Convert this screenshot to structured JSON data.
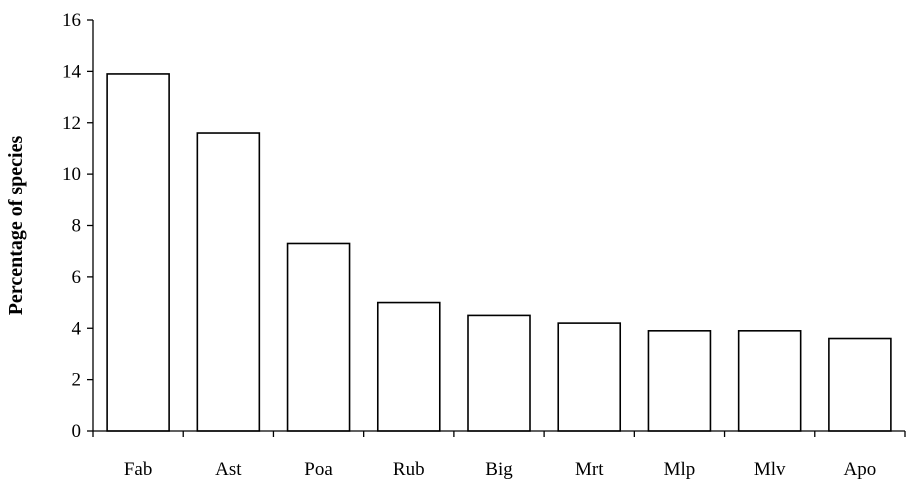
{
  "chart_data": {
    "type": "bar",
    "title": "",
    "xlabel": "",
    "ylabel": "Percentage of species",
    "categories": [
      "Fab",
      "Ast",
      "Poa",
      "Rub",
      "Big",
      "Mrt",
      "Mlp",
      "Mlv",
      "Apo"
    ],
    "values": [
      13.9,
      11.6,
      7.3,
      5.0,
      4.5,
      4.2,
      3.9,
      3.9,
      3.6
    ],
    "ylim": [
      0,
      16
    ],
    "yticks": [
      0,
      2,
      4,
      6,
      8,
      10,
      12,
      14,
      16
    ],
    "grid": false,
    "legend": "none",
    "bar_fill": "#ffffff",
    "bar_stroke": "#000000"
  }
}
